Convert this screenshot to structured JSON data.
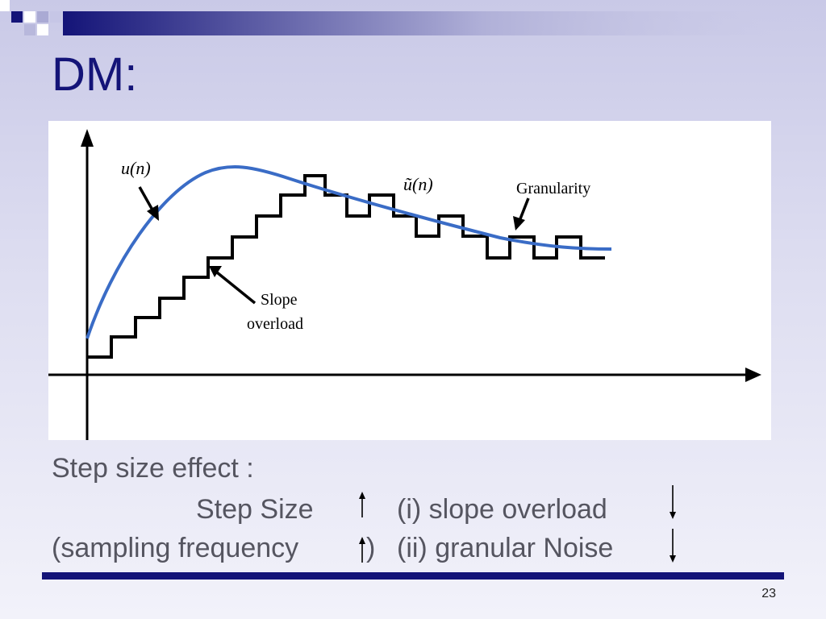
{
  "slide": {
    "title": "DM:",
    "page_number": "23"
  },
  "figure": {
    "labels": {
      "u": "u(n)",
      "u_tilde": "ũ(n)",
      "granularity": "Granularity",
      "slope_line1": "Slope",
      "slope_line2": "overload"
    },
    "colors": {
      "curve": "#3a6cc6",
      "staircase": "#000000",
      "axes": "#000000"
    }
  },
  "text": {
    "heading": "Step size effect :",
    "line2_left": "Step Size",
    "line2_right": "(i) slope overload",
    "line3_left": "(sampling frequency",
    "line3_close": ")",
    "line3_right": "(ii) granular Noise"
  },
  "icons": {
    "up": "up-arrow-icon",
    "down": "down-arrow-icon"
  },
  "colors": {
    "title": "#141478",
    "body_text": "#555560",
    "rule": "#141478"
  }
}
